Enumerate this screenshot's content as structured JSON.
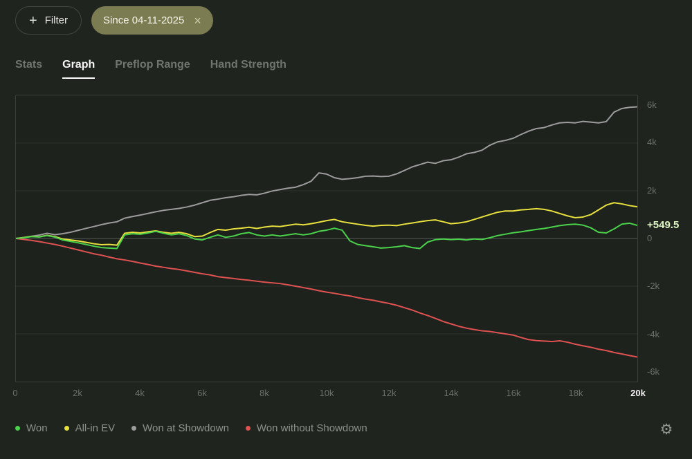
{
  "header": {
    "filter_button": {
      "label": "Filter",
      "icon": "plus-icon"
    },
    "filter_chip": {
      "label": "Since 04-11-2025",
      "close_icon": "x-icon",
      "bg_color": "#7c7c52"
    }
  },
  "tabs": [
    {
      "label": "Stats",
      "active": false
    },
    {
      "label": "Graph",
      "active": true
    },
    {
      "label": "Preflop Range",
      "active": false
    },
    {
      "label": "Hand Strength",
      "active": false
    }
  ],
  "chart_data": {
    "type": "line",
    "title": "",
    "xlabel": "",
    "ylabel": "",
    "x_unit": "hands",
    "xlim": [
      0,
      20000
    ],
    "ylim": [
      -6000,
      6000
    ],
    "grid": "horizontal",
    "zero_line": true,
    "legend_position": "bottom",
    "x_ticks": [
      {
        "value": 0,
        "label": "0"
      },
      {
        "value": 2000,
        "label": "2k"
      },
      {
        "value": 4000,
        "label": "4k"
      },
      {
        "value": 6000,
        "label": "6k"
      },
      {
        "value": 8000,
        "label": "8k"
      },
      {
        "value": 10000,
        "label": "10k"
      },
      {
        "value": 12000,
        "label": "12k"
      },
      {
        "value": 14000,
        "label": "14k"
      },
      {
        "value": 16000,
        "label": "16k"
      },
      {
        "value": 18000,
        "label": "18k"
      },
      {
        "value": 20000,
        "label": "20k",
        "highlight": true
      }
    ],
    "y_ticks": [
      {
        "value": 6000,
        "label": "6k"
      },
      {
        "value": 4000,
        "label": "4k"
      },
      {
        "value": 2000,
        "label": "2k"
      },
      {
        "value": 0,
        "label": "0"
      },
      {
        "value": -2000,
        "label": "-2k"
      },
      {
        "value": -4000,
        "label": "-4k"
      },
      {
        "value": -6000,
        "label": "-6k"
      }
    ],
    "current_value_label": {
      "text": "+549.5",
      "value": 549.5,
      "color": "#def5c6"
    },
    "series": [
      {
        "name": "Won",
        "color": "#4bd34b",
        "x_step": 250,
        "values": [
          0,
          30,
          80,
          60,
          120,
          60,
          -60,
          -120,
          -180,
          -250,
          -320,
          -380,
          -400,
          -420,
          150,
          200,
          180,
          230,
          300,
          220,
          150,
          200,
          120,
          -20,
          -60,
          50,
          150,
          50,
          100,
          200,
          250,
          150,
          100,
          150,
          100,
          150,
          200,
          150,
          200,
          300,
          350,
          430,
          350,
          -100,
          -250,
          -300,
          -350,
          -400,
          -380,
          -350,
          -300,
          -380,
          -420,
          -150,
          -50,
          -20,
          -50,
          -30,
          -60,
          -20,
          -40,
          30,
          120,
          180,
          240,
          280,
          330,
          380,
          420,
          480,
          540,
          580,
          600,
          560,
          450,
          260,
          230,
          400,
          600,
          640,
          549.5
        ]
      },
      {
        "name": "All-in EV",
        "color": "#e8e13e",
        "x_step": 250,
        "values": [
          0,
          40,
          90,
          70,
          130,
          80,
          -20,
          -60,
          -100,
          -160,
          -220,
          -260,
          -250,
          -280,
          220,
          260,
          230,
          280,
          320,
          260,
          220,
          260,
          200,
          80,
          100,
          250,
          380,
          350,
          400,
          430,
          470,
          420,
          480,
          520,
          500,
          550,
          600,
          570,
          620,
          680,
          750,
          800,
          700,
          650,
          600,
          550,
          520,
          550,
          560,
          540,
          600,
          650,
          700,
          750,
          780,
          700,
          620,
          650,
          700,
          800,
          900,
          1000,
          1100,
          1150,
          1150,
          1200,
          1220,
          1250,
          1220,
          1150,
          1050,
          950,
          870,
          900,
          1000,
          1200,
          1400,
          1500,
          1450,
          1380,
          1330
        ]
      },
      {
        "name": "Won at Showdown",
        "color": "#9c9c9c",
        "x_step": 250,
        "values": [
          0,
          40,
          90,
          140,
          220,
          160,
          200,
          260,
          340,
          420,
          500,
          580,
          650,
          700,
          850,
          920,
          980,
          1050,
          1120,
          1180,
          1220,
          1260,
          1320,
          1400,
          1500,
          1600,
          1650,
          1710,
          1750,
          1810,
          1850,
          1830,
          1900,
          1990,
          2050,
          2110,
          2150,
          2260,
          2400,
          2750,
          2700,
          2550,
          2480,
          2510,
          2550,
          2610,
          2620,
          2600,
          2610,
          2710,
          2850,
          3000,
          3100,
          3200,
          3150,
          3260,
          3300,
          3410,
          3550,
          3610,
          3700,
          3910,
          4050,
          4110,
          4200,
          4360,
          4500,
          4610,
          4650,
          4760,
          4850,
          4870,
          4850,
          4910,
          4880,
          4850,
          4900,
          5300,
          5450,
          5500,
          5520
        ]
      },
      {
        "name": "Won without Showdown",
        "color": "#e05252",
        "x_step": 250,
        "values": [
          0,
          -40,
          -80,
          -130,
          -190,
          -250,
          -320,
          -400,
          -480,
          -560,
          -640,
          -700,
          -780,
          -850,
          -900,
          -960,
          -1030,
          -1090,
          -1160,
          -1210,
          -1260,
          -1300,
          -1360,
          -1420,
          -1480,
          -1530,
          -1600,
          -1640,
          -1680,
          -1720,
          -1750,
          -1790,
          -1830,
          -1860,
          -1890,
          -1940,
          -2000,
          -2060,
          -2120,
          -2190,
          -2250,
          -2300,
          -2360,
          -2410,
          -2480,
          -2540,
          -2590,
          -2660,
          -2720,
          -2800,
          -2900,
          -3000,
          -3120,
          -3230,
          -3350,
          -3480,
          -3580,
          -3680,
          -3760,
          -3820,
          -3870,
          -3900,
          -3950,
          -4000,
          -4050,
          -4150,
          -4240,
          -4280,
          -4300,
          -4320,
          -4290,
          -4350,
          -4430,
          -4500,
          -4560,
          -4640,
          -4700,
          -4780,
          -4840,
          -4910,
          -4970.5
        ]
      }
    ]
  },
  "footer": {
    "settings_icon": "gear-icon",
    "settings_glyph": "⚙"
  },
  "icons": {
    "plus": "+",
    "close": "×"
  }
}
